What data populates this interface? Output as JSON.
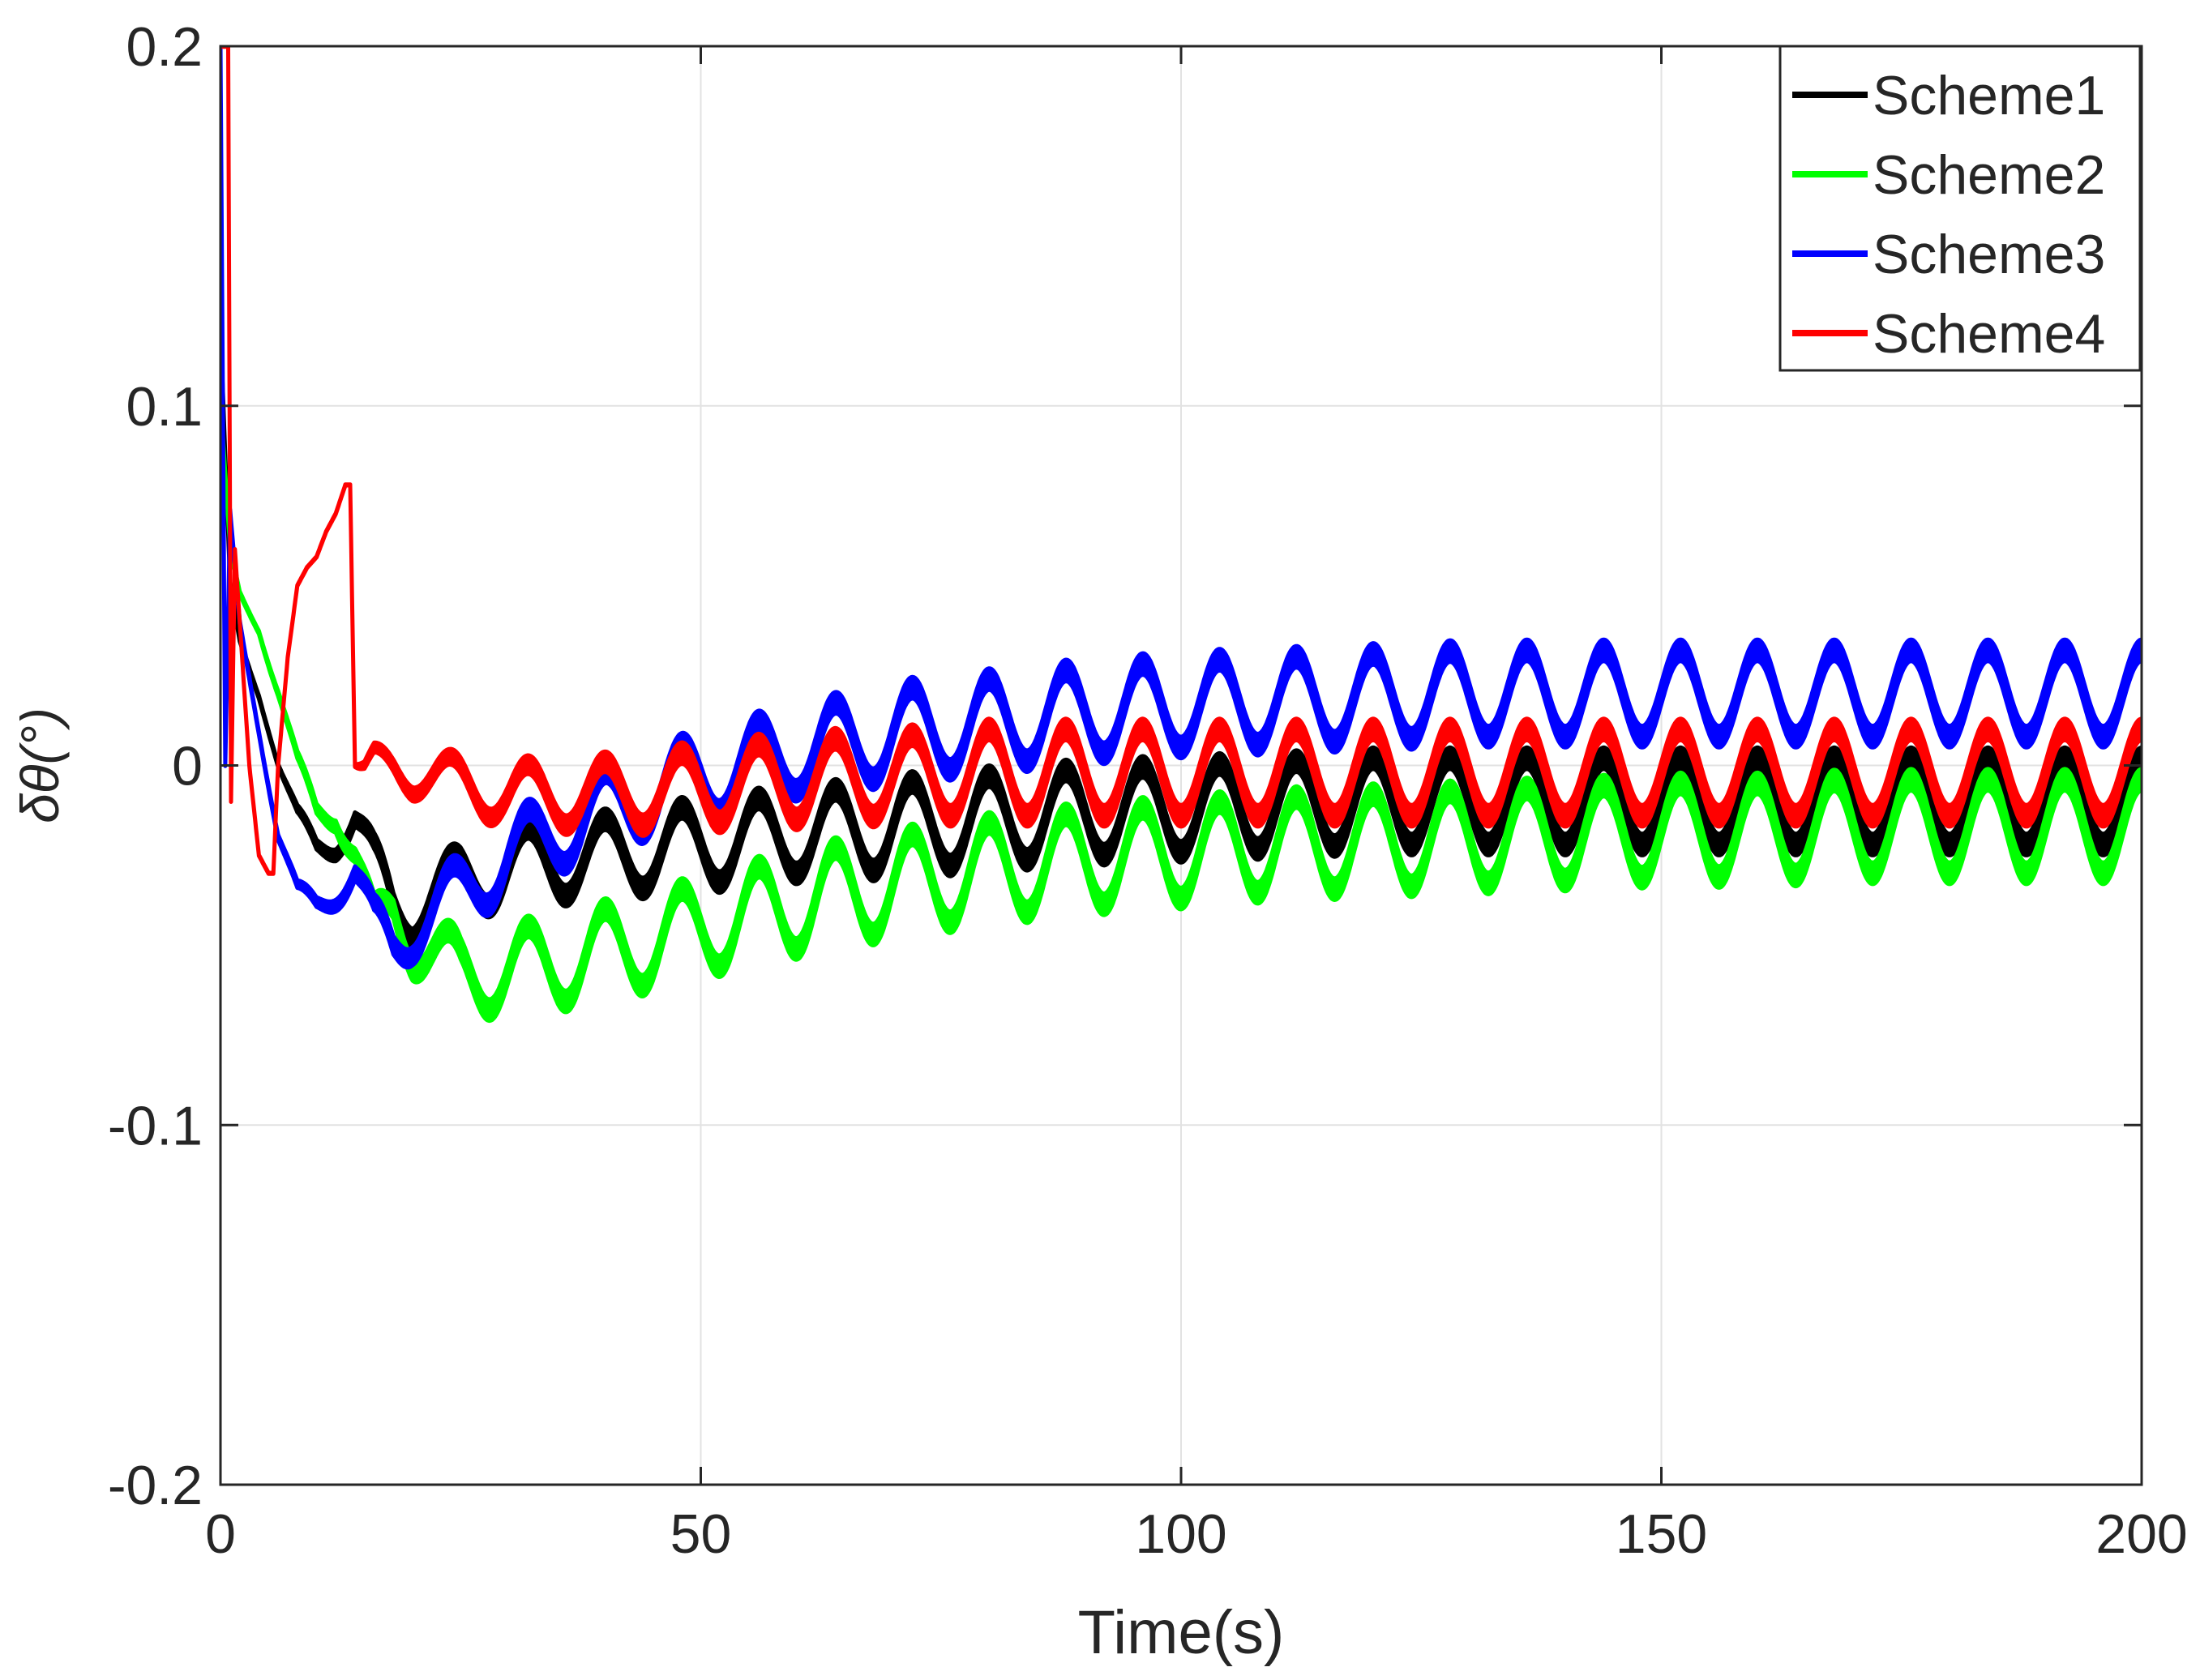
{
  "chart_data": {
    "type": "line",
    "title": "",
    "xlabel": "Time(s)",
    "ylabel": "δθ(°)",
    "xlim": [
      0,
      200
    ],
    "ylim": [
      -0.2,
      0.2
    ],
    "xticks": [
      0,
      50,
      100,
      150,
      200
    ],
    "xtick_labels": [
      "0",
      "50",
      "100",
      "150",
      "200"
    ],
    "yticks": [
      -0.2,
      -0.1,
      0,
      0.1,
      0.2
    ],
    "ytick_labels": [
      "-0.2",
      "-0.1",
      "0",
      "0.1",
      "0.2"
    ],
    "grid": true,
    "legend_position": "top-right",
    "oscillation_period_s": 8,
    "series": [
      {
        "name": "Scheme1",
        "color": "#000000",
        "x": [
          0,
          1,
          2,
          4,
          6,
          8,
          10,
          12,
          14,
          16,
          18,
          20,
          25,
          30,
          40,
          50,
          60,
          70,
          80,
          90,
          100,
          110,
          120,
          130,
          140,
          150,
          160,
          170,
          180,
          190,
          200
        ],
        "y": [
          0.12,
          0.05,
          0.035,
          0.02,
          0.0,
          -0.015,
          -0.022,
          -0.02,
          -0.015,
          -0.028,
          -0.038,
          -0.04,
          -0.032,
          -0.028,
          -0.025,
          -0.022,
          -0.019,
          -0.017,
          -0.015,
          -0.013,
          -0.012,
          -0.011,
          -0.01,
          -0.01,
          -0.01,
          -0.01,
          -0.01,
          -0.01,
          -0.01,
          -0.01,
          -0.01
        ],
        "amplitude": [
          0.001,
          0.001,
          0.001,
          0.001,
          0.001,
          0.003,
          0.004,
          0.005,
          0.006,
          0.007,
          0.008,
          0.008,
          0.009,
          0.01,
          0.01,
          0.011,
          0.011,
          0.012,
          0.012,
          0.012,
          0.012,
          0.012,
          0.012,
          0.012,
          0.012,
          0.012,
          0.012,
          0.012,
          0.012,
          0.012,
          0.012
        ],
        "phase": 0,
        "band": 0.006
      },
      {
        "name": "Scheme2",
        "color": "#00ff00",
        "x": [
          0,
          1,
          2,
          4,
          6,
          8,
          10,
          12,
          14,
          16,
          18,
          20,
          25,
          30,
          40,
          50,
          60,
          70,
          80,
          90,
          100,
          110,
          120,
          130,
          140,
          150,
          160,
          170,
          180,
          190,
          200
        ],
        "y": [
          0.1,
          0.06,
          0.048,
          0.038,
          0.02,
          0.0,
          -0.012,
          -0.012,
          -0.025,
          -0.045,
          -0.04,
          -0.048,
          -0.058,
          -0.057,
          -0.052,
          -0.045,
          -0.038,
          -0.033,
          -0.029,
          -0.026,
          -0.024,
          -0.022,
          -0.021,
          -0.02,
          -0.019,
          -0.018,
          -0.018,
          -0.017,
          -0.017,
          -0.017,
          -0.017
        ],
        "amplitude": [
          0.001,
          0.001,
          0.001,
          0.001,
          0.002,
          0.003,
          0.004,
          0.005,
          0.006,
          0.007,
          0.008,
          0.009,
          0.01,
          0.011,
          0.012,
          0.012,
          0.013,
          0.013,
          0.013,
          0.013,
          0.013,
          0.013,
          0.013,
          0.013,
          0.013,
          0.013,
          0.013,
          0.013,
          0.013,
          0.013,
          0.013
        ],
        "phase": 0,
        "band": 0.006
      },
      {
        "name": "Scheme3",
        "color": "#0000ff",
        "x": [
          0,
          0.5,
          1,
          2,
          4,
          6,
          8,
          10,
          12,
          14,
          16,
          18,
          20,
          25,
          30,
          40,
          50,
          60,
          70,
          80,
          90,
          100,
          110,
          120,
          130,
          140,
          150,
          160,
          170,
          180,
          190,
          200
        ],
        "y": [
          0.2,
          0.0,
          0.07,
          0.04,
          0.01,
          -0.02,
          -0.036,
          -0.038,
          -0.034,
          -0.03,
          -0.045,
          -0.05,
          -0.045,
          -0.035,
          -0.025,
          -0.012,
          -0.003,
          0.004,
          0.009,
          0.012,
          0.015,
          0.017,
          0.018,
          0.019,
          0.02,
          0.02,
          0.02,
          0.02,
          0.02,
          0.02,
          0.02,
          0.02
        ],
        "amplitude": [
          0.0,
          0.0,
          0.001,
          0.001,
          0.001,
          0.002,
          0.003,
          0.004,
          0.005,
          0.006,
          0.007,
          0.008,
          0.008,
          0.009,
          0.01,
          0.01,
          0.011,
          0.011,
          0.012,
          0.012,
          0.012,
          0.012,
          0.012,
          0.012,
          0.012,
          0.012,
          0.012,
          0.012,
          0.012,
          0.012,
          0.012,
          0.012
        ],
        "phase": 0,
        "band": 0.006
      },
      {
        "name": "Scheme4",
        "color": "#ff0000",
        "x": [
          0,
          0.8,
          1.1,
          1.5,
          2,
          3,
          4,
          5,
          5.5,
          6,
          7,
          8,
          9,
          10,
          11,
          12,
          13,
          13.5,
          14,
          15,
          16,
          18,
          20,
          25,
          30,
          40,
          50,
          60,
          70,
          80,
          90,
          100,
          110,
          120,
          130,
          140,
          150,
          160,
          170,
          180,
          190,
          200
        ],
        "y": [
          0.2,
          0.2,
          -0.01,
          0.06,
          0.04,
          0.0,
          -0.025,
          -0.03,
          -0.03,
          0.0,
          0.03,
          0.05,
          0.055,
          0.058,
          0.065,
          0.07,
          0.078,
          0.078,
          0.0,
          -0.002,
          0.001,
          0.0,
          -0.002,
          -0.005,
          -0.008,
          -0.008,
          -0.006,
          -0.004,
          -0.003,
          -0.002,
          -0.002,
          -0.002,
          -0.002,
          -0.002,
          -0.002,
          -0.002,
          -0.002,
          -0.002,
          -0.002,
          -0.002,
          -0.002,
          -0.002
        ],
        "amplitude": [
          0.0,
          0.0,
          0.0,
          0.0,
          0.0,
          0.0,
          0.0,
          0.0,
          0.0,
          0.0,
          0.0,
          0.0,
          0.0,
          0.0,
          0.0,
          0.0,
          0.0,
          0.0,
          0.001,
          0.003,
          0.004,
          0.005,
          0.006,
          0.007,
          0.008,
          0.009,
          0.01,
          0.011,
          0.011,
          0.012,
          0.012,
          0.012,
          0.012,
          0.012,
          0.012,
          0.012,
          0.012,
          0.012,
          0.012,
          0.012,
          0.012,
          0.012
        ],
        "phase": 0,
        "band": 0.006
      }
    ]
  }
}
